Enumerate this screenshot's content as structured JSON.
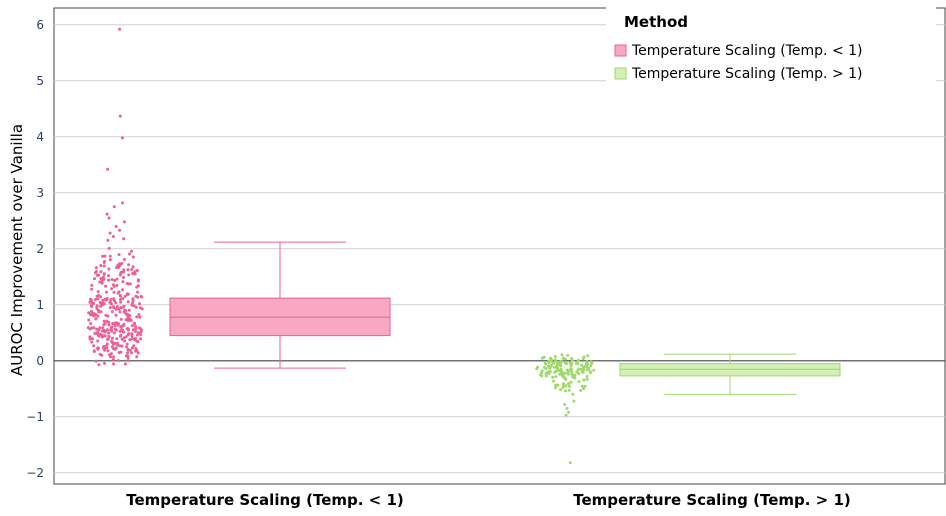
{
  "chart_data": {
    "type": "box",
    "title": "",
    "xlabel": "",
    "ylabel": "AUROC Improvement over Vanilla",
    "ylim": [
      -2.2,
      6.3
    ],
    "y_ticks": [
      -2,
      -1,
      0,
      1,
      2,
      3,
      4,
      5,
      6
    ],
    "y_tick_labels": [
      "−2",
      "−1",
      "0",
      "1",
      "2",
      "3",
      "4",
      "5",
      "6"
    ],
    "categories": [
      "Temperature Scaling (Temp. < 1)",
      "Temperature Scaling (Temp. > 1)"
    ],
    "grid": true,
    "legend": {
      "title": "Method",
      "position": "top-right"
    },
    "series": [
      {
        "name": "Temperature Scaling (Temp. < 1)",
        "color": "#ef5f93",
        "fill": "#f7a8c3",
        "box": {
          "min": -0.13,
          "q1": 0.45,
          "median": 0.78,
          "q3": 1.12,
          "max": 2.12
        },
        "outliers": [
          5.92,
          4.37,
          3.98,
          3.42,
          2.82,
          2.75,
          2.62,
          2.55,
          2.48,
          2.4,
          2.33,
          2.28,
          2.22,
          2.18,
          2.15
        ],
        "points": {
          "count": 360,
          "low": -0.13,
          "q1": 0.45,
          "median": 0.78,
          "q3": 1.12,
          "high": 2.12
        }
      },
      {
        "name": "Temperature Scaling (Temp. > 1)",
        "color": "#9ed96b",
        "fill": "#d4efb8",
        "box": {
          "min": -0.6,
          "q1": -0.27,
          "median": -0.15,
          "q3": -0.05,
          "max": 0.12
        },
        "outliers": [
          -0.72,
          -0.78,
          -0.85,
          -0.92,
          -0.97,
          -1.82
        ],
        "points": {
          "count": 150,
          "low": -0.6,
          "q1": -0.27,
          "median": -0.15,
          "q3": -0.05,
          "high": 0.12
        }
      }
    ]
  }
}
